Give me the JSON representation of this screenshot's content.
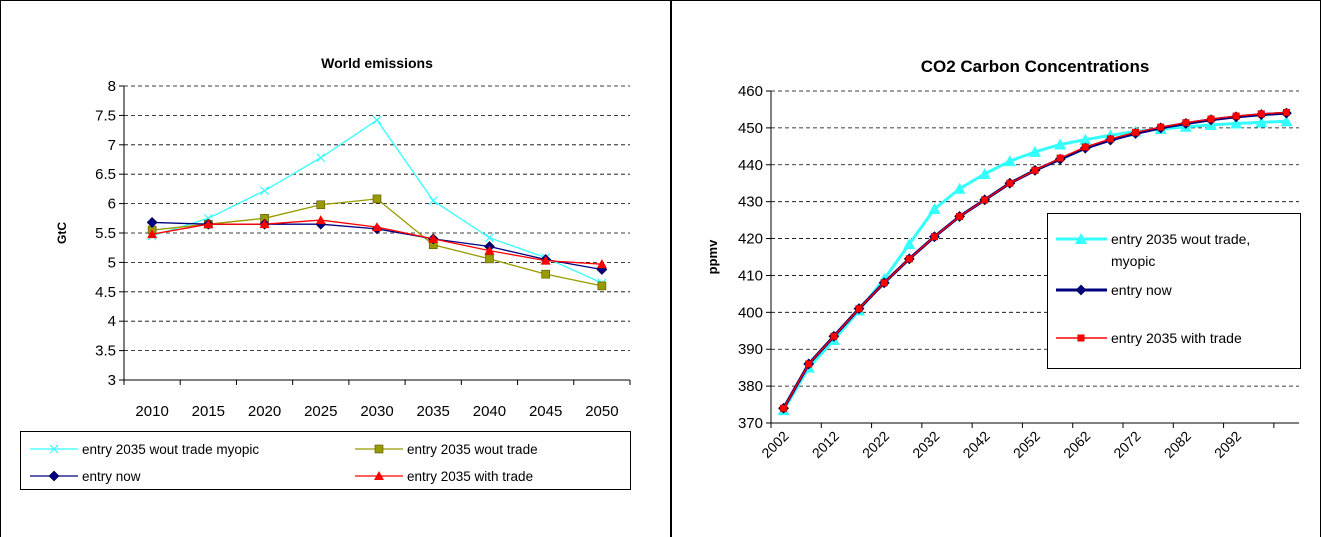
{
  "chart_data": [
    {
      "type": "line",
      "title": "World emissions",
      "xlabel": "",
      "ylabel": "GtC",
      "categories": [
        "2010",
        "2015",
        "2020",
        "2025",
        "2030",
        "2035",
        "2040",
        "2045",
        "2050"
      ],
      "ylim": [
        3,
        8
      ],
      "yticks": [
        "3",
        "3.5",
        "4",
        "4.5",
        "5",
        "5.5",
        "6",
        "6.5",
        "7",
        "7.5",
        "8"
      ],
      "grid": true,
      "legend": "bottom",
      "series": [
        {
          "name": "entry 2035 wout trade myopic",
          "color": "#33ffff",
          "marker": "x",
          "values": [
            5.45,
            5.75,
            6.22,
            6.78,
            7.42,
            6.05,
            5.42,
            5.08,
            4.65
          ]
        },
        {
          "name": "entry 2035 wout trade",
          "color": "#999900",
          "marker": "square",
          "values": [
            5.55,
            5.65,
            5.75,
            5.98,
            6.08,
            5.3,
            5.06,
            4.8,
            4.6
          ]
        },
        {
          "name": "entry now",
          "color": "#000080",
          "marker": "diamond",
          "values": [
            5.68,
            5.65,
            5.65,
            5.65,
            5.57,
            5.4,
            5.27,
            5.05,
            4.88
          ]
        },
        {
          "name": "entry 2035 with trade",
          "color": "#ff0000",
          "marker": "triangle",
          "values": [
            5.48,
            5.65,
            5.65,
            5.72,
            5.6,
            5.4,
            5.2,
            5.03,
            4.97
          ]
        }
      ]
    },
    {
      "type": "line",
      "title": "CO2 Carbon Concentrations",
      "xlabel": "",
      "ylabel": "ppmv",
      "x": [
        2002,
        2007,
        2012,
        2017,
        2022,
        2027,
        2032,
        2037,
        2042,
        2047,
        2052,
        2057,
        2062,
        2067,
        2072,
        2077,
        2082,
        2087,
        2092,
        2097,
        2102
      ],
      "xtick_labels": [
        "2002",
        "2012",
        "2022",
        "2032",
        "2042",
        "2052",
        "2062",
        "2072",
        "2082",
        "2092"
      ],
      "ylim": [
        370,
        460
      ],
      "yticks": [
        "370",
        "380",
        "390",
        "400",
        "410",
        "420",
        "430",
        "440",
        "450",
        "460"
      ],
      "grid": true,
      "legend": "right",
      "series": [
        {
          "name": "entry 2035 wout trade, myopic",
          "color": "#33ffff",
          "marker": "triangle",
          "values": [
            373.5,
            385,
            392.5,
            400.5,
            409,
            418.5,
            428,
            433.5,
            437.5,
            441,
            443.5,
            445.5,
            446.8,
            448,
            449,
            449.7,
            450.3,
            450.8,
            451.2,
            451.5,
            451.8
          ]
        },
        {
          "name": "entry now",
          "color": "#000080",
          "marker": "diamond",
          "values": [
            374,
            386,
            393.5,
            401,
            408,
            414.5,
            420.5,
            426,
            430.5,
            435,
            438.5,
            441.5,
            444.5,
            446.7,
            448.5,
            450,
            451.2,
            452.2,
            453,
            453.6,
            454
          ]
        },
        {
          "name": "entry 2035 with trade",
          "color": "#ff0000",
          "marker": "square",
          "values": [
            374,
            386,
            393.5,
            401,
            408,
            414.5,
            420.5,
            426,
            430.5,
            435,
            438.5,
            441.8,
            444.8,
            447,
            448.8,
            450.2,
            451.4,
            452.4,
            453.2,
            453.8,
            454.2
          ]
        }
      ]
    }
  ]
}
